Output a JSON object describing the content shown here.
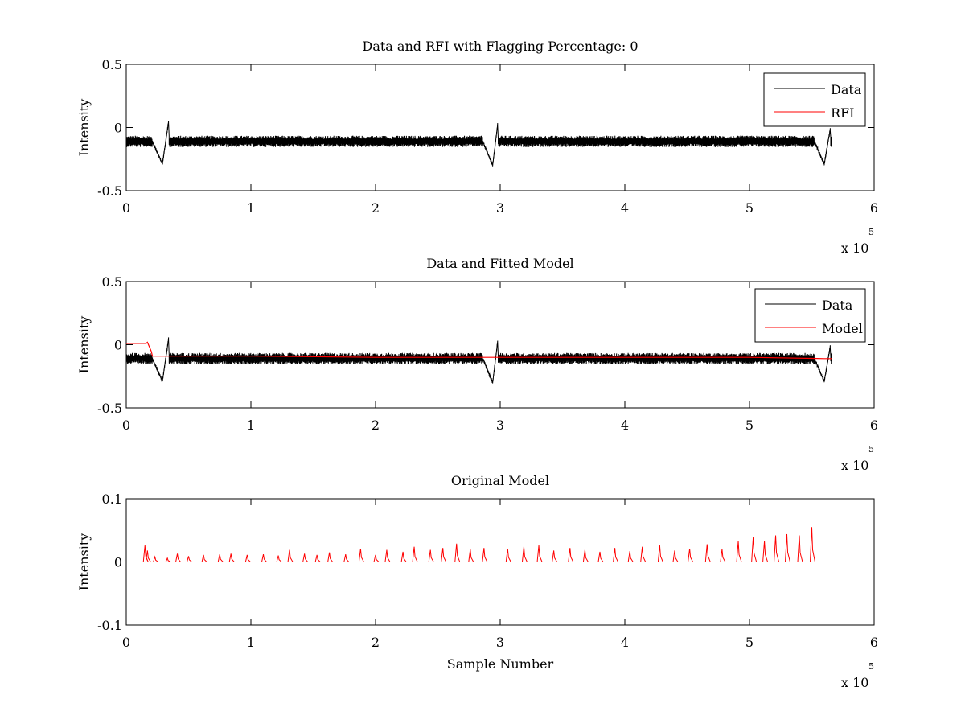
{
  "chart_data": [
    {
      "type": "line",
      "title": "Data and RFI with Flagging Percentage: 0",
      "xlabel": "",
      "ylabel": "Intensity",
      "xlim": [
        0,
        600000
      ],
      "ylim": [
        -0.5,
        0.5
      ],
      "x_ticks": [
        "0",
        "1",
        "2",
        "3",
        "4",
        "5",
        "6"
      ],
      "y_ticks": [
        "0.5",
        "0",
        "-0.5"
      ],
      "x_multiplier": {
        "base": "x 10",
        "exponent": "5"
      },
      "legend_position": "top-right",
      "series": [
        {
          "name": "Data",
          "color": "#000000",
          "baseline": -0.11,
          "band": 0.045,
          "dips": [
            {
              "x_min": 29000,
              "y_min": -0.29,
              "x_max": 34000,
              "y_max": 0.05
            },
            {
              "x_min": 294000,
              "y_min": -0.3,
              "x_max": 298000,
              "y_max": 0.03
            },
            {
              "x_min": 560000,
              "y_min": -0.29,
              "x_max": 565000,
              "y_max": 0.0
            }
          ],
          "x_end": 566000
        },
        {
          "name": "RFI",
          "color": "#ff0000",
          "values": []
        }
      ]
    },
    {
      "type": "line",
      "title": "Data and Fitted Model",
      "xlabel": "",
      "ylabel": "Intensity",
      "xlim": [
        0,
        600000
      ],
      "ylim": [
        -0.5,
        0.5
      ],
      "x_ticks": [
        "0",
        "1",
        "2",
        "3",
        "4",
        "5",
        "6"
      ],
      "y_ticks": [
        "0.5",
        "0",
        "-0.5"
      ],
      "x_multiplier": {
        "base": "x 10",
        "exponent": "5"
      },
      "legend_position": "top-right",
      "series": [
        {
          "name": "Data",
          "color": "#000000",
          "baseline": -0.11,
          "band": 0.045,
          "dips": [
            {
              "x_min": 29000,
              "y_min": -0.29,
              "x_max": 34000,
              "y_max": 0.05
            },
            {
              "x_min": 294000,
              "y_min": -0.3,
              "x_max": 298000,
              "y_max": 0.03
            },
            {
              "x_min": 560000,
              "y_min": -0.29,
              "x_max": 565000,
              "y_max": 0.0
            }
          ],
          "x_end": 566000
        },
        {
          "name": "Model",
          "color": "#ff0000",
          "x": [
            0,
            16000,
            17000,
            20000,
            21000,
            25000,
            100000,
            200000,
            300000,
            400000,
            500000,
            560000,
            566000
          ],
          "y": [
            0.01,
            0.01,
            0.02,
            -0.05,
            -0.09,
            -0.09,
            -0.09,
            -0.1,
            -0.1,
            -0.1,
            -0.1,
            -0.11,
            -0.11
          ]
        }
      ]
    },
    {
      "type": "line",
      "title": "Original Model",
      "xlabel": "Sample Number",
      "ylabel": "Intensity",
      "xlim": [
        0,
        600000
      ],
      "ylim": [
        -0.1,
        0.1
      ],
      "x_ticks": [
        "0",
        "1",
        "2",
        "3",
        "4",
        "5",
        "6"
      ],
      "y_ticks": [
        "0.1",
        "0",
        "-0.1"
      ],
      "x_multiplier": {
        "base": "x 10",
        "exponent": "5"
      },
      "series": [
        {
          "color": "#ff0000",
          "x_end": 566000,
          "spikes": [
            {
              "x": 15000,
              "y": 0.026
            },
            {
              "x": 17000,
              "y": 0.018
            },
            {
              "x": 23000,
              "y": 0.008
            },
            {
              "x": 33000,
              "y": 0.006
            },
            {
              "x": 41000,
              "y": 0.013
            },
            {
              "x": 50000,
              "y": 0.009
            },
            {
              "x": 62000,
              "y": 0.011
            },
            {
              "x": 75000,
              "y": 0.012
            },
            {
              "x": 84000,
              "y": 0.013
            },
            {
              "x": 97000,
              "y": 0.011
            },
            {
              "x": 110000,
              "y": 0.012
            },
            {
              "x": 122000,
              "y": 0.01
            },
            {
              "x": 131000,
              "y": 0.019
            },
            {
              "x": 143000,
              "y": 0.013
            },
            {
              "x": 153000,
              "y": 0.011
            },
            {
              "x": 163000,
              "y": 0.015
            },
            {
              "x": 176000,
              "y": 0.012
            },
            {
              "x": 188000,
              "y": 0.021
            },
            {
              "x": 200000,
              "y": 0.011
            },
            {
              "x": 209000,
              "y": 0.019
            },
            {
              "x": 222000,
              "y": 0.016
            },
            {
              "x": 231000,
              "y": 0.024
            },
            {
              "x": 244000,
              "y": 0.019
            },
            {
              "x": 254000,
              "y": 0.022
            },
            {
              "x": 265000,
              "y": 0.029
            },
            {
              "x": 276000,
              "y": 0.02
            },
            {
              "x": 287000,
              "y": 0.022
            },
            {
              "x": 306000,
              "y": 0.021
            },
            {
              "x": 319000,
              "y": 0.024
            },
            {
              "x": 331000,
              "y": 0.026
            },
            {
              "x": 343000,
              "y": 0.018
            },
            {
              "x": 356000,
              "y": 0.022
            },
            {
              "x": 368000,
              "y": 0.019
            },
            {
              "x": 380000,
              "y": 0.016
            },
            {
              "x": 392000,
              "y": 0.022
            },
            {
              "x": 404000,
              "y": 0.017
            },
            {
              "x": 414000,
              "y": 0.024
            },
            {
              "x": 428000,
              "y": 0.026
            },
            {
              "x": 440000,
              "y": 0.018
            },
            {
              "x": 452000,
              "y": 0.021
            },
            {
              "x": 466000,
              "y": 0.028
            },
            {
              "x": 478000,
              "y": 0.02
            },
            {
              "x": 491000,
              "y": 0.033
            },
            {
              "x": 503000,
              "y": 0.04
            },
            {
              "x": 512000,
              "y": 0.033
            },
            {
              "x": 521000,
              "y": 0.042
            },
            {
              "x": 530000,
              "y": 0.044
            },
            {
              "x": 540000,
              "y": 0.042
            },
            {
              "x": 550000,
              "y": 0.055
            }
          ]
        }
      ]
    }
  ]
}
